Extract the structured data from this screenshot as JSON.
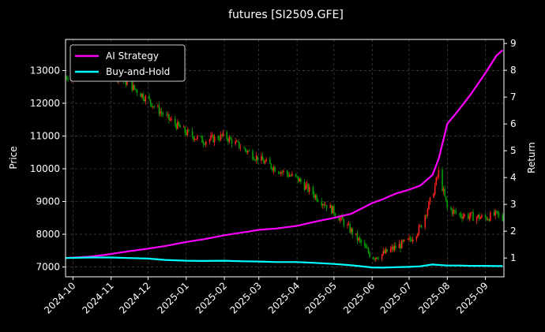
{
  "chart_data": {
    "type": "line",
    "title": "futures [SI2509.GFE]",
    "xlabel": "",
    "ylabel": "Price",
    "y2label": "Return",
    "x_ticks": [
      "2024-10",
      "2024-11",
      "2024-12",
      "2025-01",
      "2025-02",
      "2025-03",
      "2025-04",
      "2025-05",
      "2025-06",
      "2025-07",
      "2025-08",
      "2025-09"
    ],
    "y_ticks": [
      7000,
      8000,
      9000,
      10000,
      11000,
      12000,
      13000
    ],
    "y2_ticks": [
      1,
      2,
      3,
      4,
      5,
      6,
      7,
      8,
      9
    ],
    "x_range": [
      "2024-09-25",
      "2025-09-16"
    ],
    "ylim": [
      6700,
      13950
    ],
    "y2lim": [
      0.3,
      9.15
    ],
    "grid": true,
    "legend_position": "top-left",
    "series": [
      {
        "name": "AI Strategy",
        "color": "#ff00ff",
        "axis": "return",
        "dates": [
          "2024-09-25",
          "2024-10-15",
          "2024-11-01",
          "2024-11-15",
          "2024-12-01",
          "2024-12-15",
          "2025-01-01",
          "2025-01-15",
          "2025-02-01",
          "2025-02-15",
          "2025-03-01",
          "2025-03-15",
          "2025-04-01",
          "2025-04-15",
          "2025-05-01",
          "2025-05-15",
          "2025-06-01",
          "2025-06-10",
          "2025-06-20",
          "2025-07-01",
          "2025-07-10",
          "2025-07-20",
          "2025-07-25",
          "2025-08-01",
          "2025-08-10",
          "2025-08-20",
          "2025-09-01",
          "2025-09-10",
          "2025-09-15"
        ],
        "values": [
          1.0,
          1.05,
          1.15,
          1.25,
          1.35,
          1.45,
          1.6,
          1.7,
          1.85,
          1.95,
          2.05,
          2.1,
          2.2,
          2.35,
          2.5,
          2.65,
          3.05,
          3.2,
          3.4,
          3.55,
          3.7,
          4.1,
          4.7,
          6.0,
          6.5,
          7.1,
          7.9,
          8.55,
          8.75
        ]
      },
      {
        "name": "Buy-and-Hold",
        "color": "#00ffff",
        "axis": "return",
        "dates": [
          "2024-09-25",
          "2024-10-15",
          "2024-11-01",
          "2024-11-15",
          "2024-12-01",
          "2024-12-15",
          "2025-01-01",
          "2025-01-15",
          "2025-02-01",
          "2025-02-15",
          "2025-03-01",
          "2025-03-15",
          "2025-04-01",
          "2025-04-15",
          "2025-05-01",
          "2025-05-15",
          "2025-06-01",
          "2025-06-10",
          "2025-06-20",
          "2025-07-01",
          "2025-07-10",
          "2025-07-20",
          "2025-07-25",
          "2025-08-01",
          "2025-08-10",
          "2025-08-20",
          "2025-09-01",
          "2025-09-10",
          "2025-09-15"
        ],
        "values": [
          1.0,
          1.02,
          1.02,
          1.0,
          0.98,
          0.93,
          0.9,
          0.89,
          0.9,
          0.88,
          0.87,
          0.85,
          0.85,
          0.82,
          0.78,
          0.73,
          0.65,
          0.64,
          0.66,
          0.67,
          0.69,
          0.76,
          0.74,
          0.72,
          0.72,
          0.71,
          0.71,
          0.7,
          0.7
        ]
      },
      {
        "name": "Price",
        "axis": "price",
        "style": "candlestick",
        "up_color": "#ff2020",
        "down_color": "#00a000",
        "dates": [
          "2024-09-25",
          "2024-10-15",
          "2024-11-01",
          "2024-11-15",
          "2024-12-01",
          "2024-12-15",
          "2025-01-01",
          "2025-01-15",
          "2025-02-01",
          "2025-02-15",
          "2025-03-01",
          "2025-03-15",
          "2025-04-01",
          "2025-04-15",
          "2025-05-01",
          "2025-05-15",
          "2025-06-01",
          "2025-06-10",
          "2025-06-20",
          "2025-07-01",
          "2025-07-10",
          "2025-07-20",
          "2025-07-25",
          "2025-08-01",
          "2025-08-10",
          "2025-08-20",
          "2025-09-01",
          "2025-09-10",
          "2025-09-15"
        ],
        "values": [
          12800,
          13100,
          12950,
          12600,
          12100,
          11600,
          11100,
          10850,
          11000,
          10650,
          10300,
          10000,
          9700,
          9200,
          8700,
          8100,
          7300,
          7400,
          7600,
          7800,
          8200,
          9200,
          9900,
          8800,
          8600,
          8550,
          8500,
          8600,
          8450
        ]
      }
    ]
  }
}
